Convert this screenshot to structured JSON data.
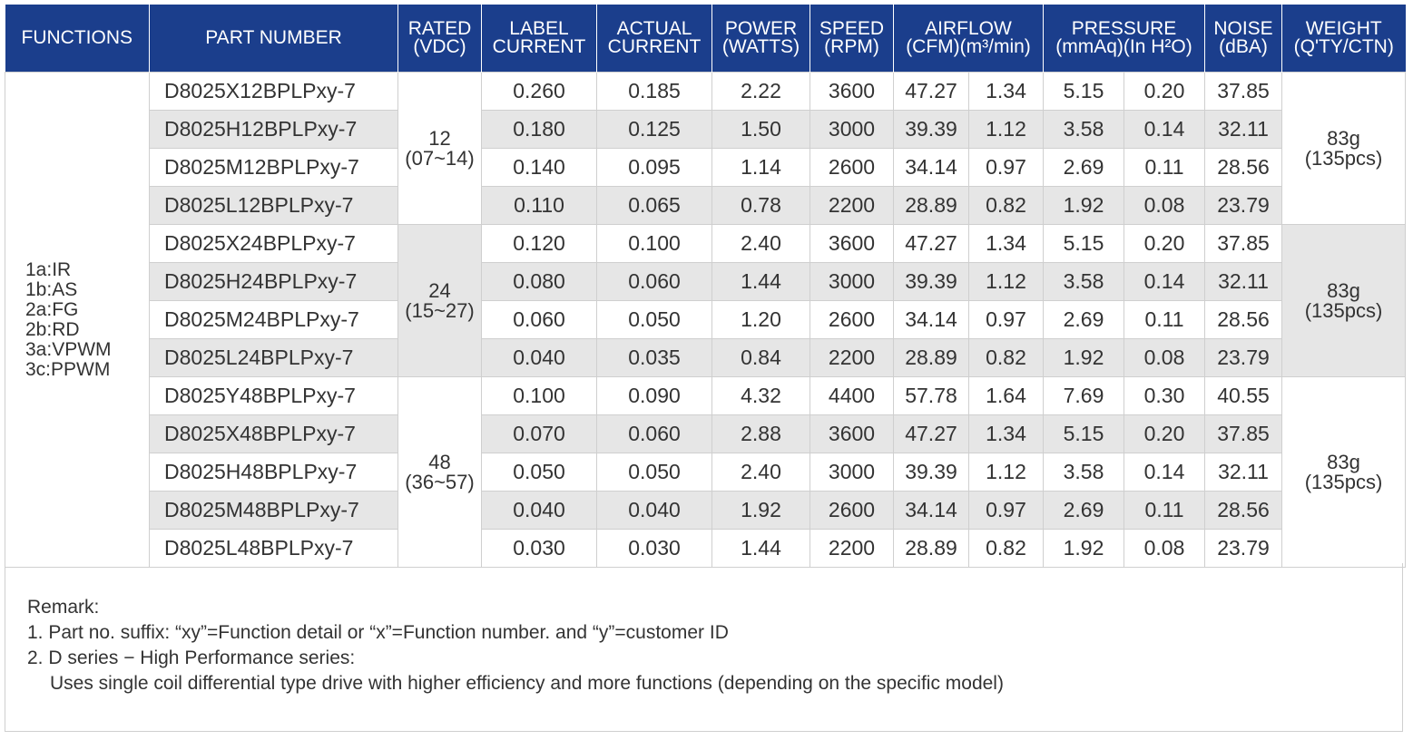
{
  "headers": [
    {
      "key": "functions",
      "lines": [
        "FUNCTIONS"
      ]
    },
    {
      "key": "part_number",
      "lines": [
        "PART NUMBER"
      ]
    },
    {
      "key": "rated",
      "lines": [
        "RATED",
        "(VDC)"
      ]
    },
    {
      "key": "label_current",
      "lines": [
        "LABEL",
        "CURRENT"
      ]
    },
    {
      "key": "actual_current",
      "lines": [
        "ACTUAL",
        "CURRENT"
      ]
    },
    {
      "key": "power",
      "lines": [
        "POWER",
        "(WATTS)"
      ]
    },
    {
      "key": "speed",
      "lines": [
        "SPEED",
        "(RPM)"
      ]
    },
    {
      "key": "airflow",
      "lines": [
        "AIRFLOW",
        "(CFM)(m³/min)"
      ]
    },
    {
      "key": "pressure",
      "lines": [
        "PRESSURE",
        "(mmAq)(In H²O)"
      ]
    },
    {
      "key": "noise",
      "lines": [
        "NOISE",
        "(dBA)"
      ]
    },
    {
      "key": "weight",
      "lines": [
        "WEIGHT",
        "(Q'TY/CTN)"
      ]
    }
  ],
  "functions": [
    "1a:IR",
    "1b:AS",
    "2a:FG",
    "2b:RD",
    "3a:VPWM",
    "3c:PPWM"
  ],
  "voltage_groups": [
    {
      "rated": "12",
      "range": "(07~14)",
      "weight": "83g",
      "qty": "(135pcs)",
      "rows": [
        [
          "D8025X12BPLPxy-7",
          "0.260",
          "0.185",
          "2.22",
          "3600",
          "47.27",
          "1.34",
          "5.15",
          "0.20",
          "37.85"
        ],
        [
          "D8025H12BPLPxy-7",
          "0.180",
          "0.125",
          "1.50",
          "3000",
          "39.39",
          "1.12",
          "3.58",
          "0.14",
          "32.11"
        ],
        [
          "D8025M12BPLPxy-7",
          "0.140",
          "0.095",
          "1.14",
          "2600",
          "34.14",
          "0.97",
          "2.69",
          "0.11",
          "28.56"
        ],
        [
          "D8025L12BPLPxy-7",
          "0.110",
          "0.065",
          "0.78",
          "2200",
          "28.89",
          "0.82",
          "1.92",
          "0.08",
          "23.79"
        ]
      ]
    },
    {
      "rated": "24",
      "range": "(15~27)",
      "weight": "83g",
      "qty": "(135pcs)",
      "rows": [
        [
          "D8025X24BPLPxy-7",
          "0.120",
          "0.100",
          "2.40",
          "3600",
          "47.27",
          "1.34",
          "5.15",
          "0.20",
          "37.85"
        ],
        [
          "D8025H24BPLPxy-7",
          "0.080",
          "0.060",
          "1.44",
          "3000",
          "39.39",
          "1.12",
          "3.58",
          "0.14",
          "32.11"
        ],
        [
          "D8025M24BPLPxy-7",
          "0.060",
          "0.050",
          "1.20",
          "2600",
          "34.14",
          "0.97",
          "2.69",
          "0.11",
          "28.56"
        ],
        [
          "D8025L24BPLPxy-7",
          "0.040",
          "0.035",
          "0.84",
          "2200",
          "28.89",
          "0.82",
          "1.92",
          "0.08",
          "23.79"
        ]
      ]
    },
    {
      "rated": "48",
      "range": "(36~57)",
      "weight": "83g",
      "qty": "(135pcs)",
      "rows": [
        [
          "D8025Y48BPLPxy-7",
          "0.100",
          "0.090",
          "4.32",
          "4400",
          "57.78",
          "1.64",
          "7.69",
          "0.30",
          "40.55"
        ],
        [
          "D8025X48BPLPxy-7",
          "0.070",
          "0.060",
          "2.88",
          "3600",
          "47.27",
          "1.34",
          "5.15",
          "0.20",
          "37.85"
        ],
        [
          "D8025H48BPLPxy-7",
          "0.050",
          "0.050",
          "2.40",
          "3000",
          "39.39",
          "1.12",
          "3.58",
          "0.14",
          "32.11"
        ],
        [
          "D8025M48BPLPxy-7",
          "0.040",
          "0.040",
          "1.92",
          "2600",
          "34.14",
          "0.97",
          "2.69",
          "0.11",
          "28.56"
        ],
        [
          "D8025L48BPLPxy-7",
          "0.030",
          "0.030",
          "1.44",
          "2200",
          "28.89",
          "0.82",
          "1.92",
          "0.08",
          "23.79"
        ]
      ]
    }
  ],
  "remark": {
    "title": "Remark:",
    "line1": "1. Part no. suffix: “xy”=Function detail or “x”=Function number. and “y”=customer ID",
    "line2": "2. D series − High Performance series:",
    "line3": "Uses single coil differential type drive with higher efficiency and more functions (depending on the specific model)"
  },
  "colors": {
    "header_bg": "#1b3e8c",
    "header_text": "#ffffff",
    "shade": "#e6e6e6",
    "grid": "#cfcfcf"
  }
}
